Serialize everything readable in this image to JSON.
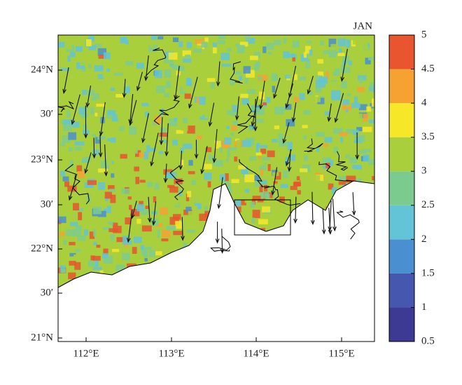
{
  "map": {
    "title": "JAN",
    "lat_ticks": [
      "24°N",
      "30′",
      "23°N",
      "30′",
      "22°N",
      "30′",
      "21°N"
    ],
    "lon_ticks": [
      "112°E",
      "113°E",
      "114°E",
      "115°E"
    ],
    "colorbar": {
      "clim": [
        0.5,
        5
      ],
      "ticks": [
        0.5,
        1,
        1.5,
        2,
        2.5,
        3,
        3.5,
        4,
        4.5,
        5
      ],
      "colors": [
        "#3d3a94",
        "#4658ad",
        "#4a8fd0",
        "#62c4d6",
        "#7ccb8e",
        "#a9cf3c",
        "#f6e829",
        "#f5a232",
        "#e8552e"
      ]
    }
  }
}
